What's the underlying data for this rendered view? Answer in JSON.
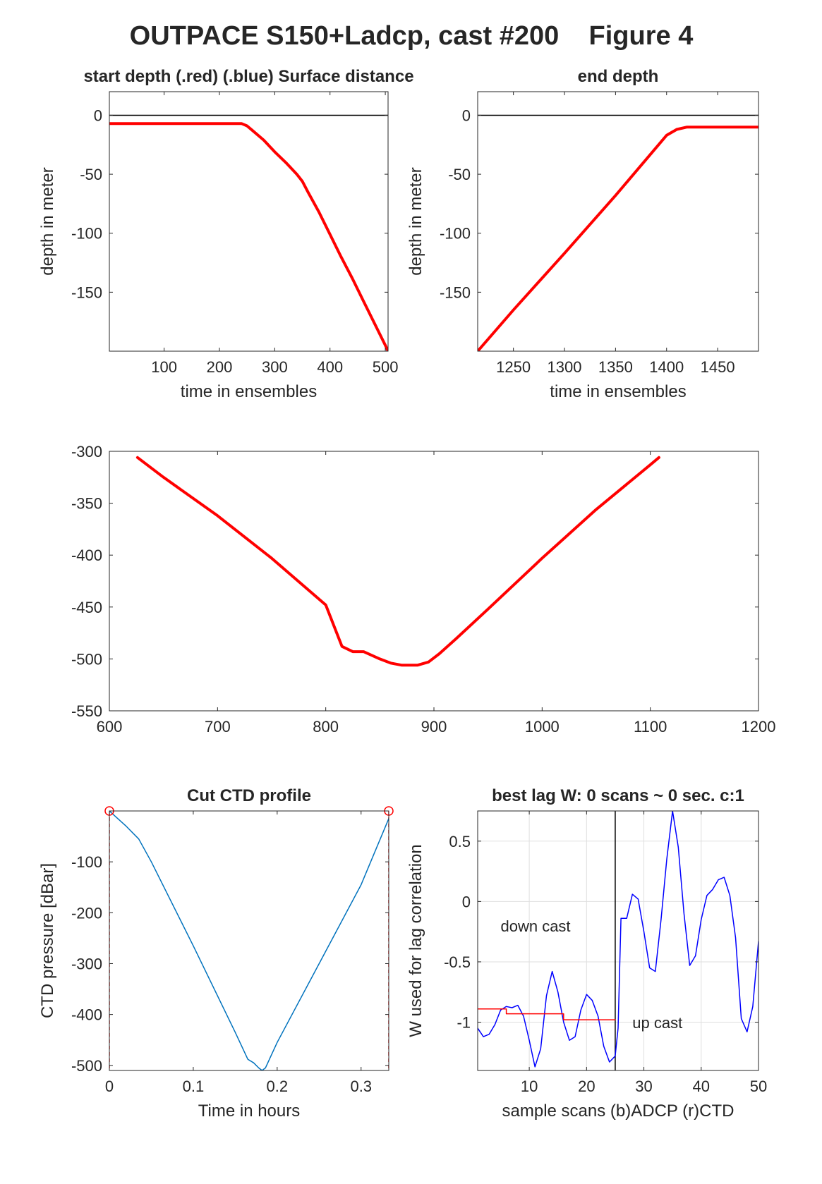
{
  "figure": {
    "title": "OUTPACE S150+Ladcp, cast #200    Figure 4"
  },
  "chart_data": [
    {
      "id": "p1",
      "type": "line",
      "title": "start depth (.red) (.blue) Surface distance",
      "xlabel": "time in ensembles",
      "ylabel": "depth in meter",
      "xlim": [
        1,
        505
      ],
      "ylim": [
        -200,
        20
      ],
      "xticks": [
        100,
        200,
        300,
        400,
        500
      ],
      "yticks": [
        0,
        -50,
        -100,
        -150
      ],
      "grid": false,
      "hlines": [
        {
          "y": 0,
          "color": "#000000"
        }
      ],
      "series": [
        {
          "color": "#ff0000",
          "width": 4,
          "x": [
            1,
            100,
            200,
            240,
            250,
            260,
            280,
            300,
            320,
            340,
            350,
            360,
            380,
            400,
            420,
            440,
            460,
            480,
            500,
            505
          ],
          "y": [
            -7,
            -7,
            -7,
            -7,
            -9,
            -13,
            -21,
            -31,
            -40,
            -50,
            -56,
            -65,
            -82,
            -101,
            -120,
            -138,
            -157,
            -176,
            -195,
            -200
          ]
        }
      ]
    },
    {
      "id": "p2",
      "type": "line",
      "title": "end depth",
      "xlabel": "time in ensembles",
      "ylabel": "depth in meter",
      "xlim": [
        1215,
        1490
      ],
      "ylim": [
        -200,
        20
      ],
      "xticks": [
        1250,
        1300,
        1350,
        1400,
        1450
      ],
      "yticks": [
        0,
        -50,
        -100,
        -150
      ],
      "grid": false,
      "hlines": [
        {
          "y": 0,
          "color": "#000000"
        }
      ],
      "series": [
        {
          "color": "#ff0000",
          "width": 4,
          "x": [
            1215,
            1250,
            1300,
            1350,
            1400,
            1410,
            1420,
            1450,
            1490
          ],
          "y": [
            -200,
            -165,
            -117,
            -68,
            -17,
            -12,
            -10,
            -10,
            -10
          ]
        }
      ]
    },
    {
      "id": "p3",
      "type": "line",
      "title": "",
      "xlabel": "",
      "ylabel": "",
      "xlim": [
        600,
        1200
      ],
      "ylim": [
        -550,
        -300
      ],
      "xticks": [
        600,
        700,
        800,
        900,
        1000,
        1100,
        1200
      ],
      "yticks": [
        -300,
        -350,
        -400,
        -450,
        -500,
        -550
      ],
      "grid": false,
      "series": [
        {
          "color": "#ff0000",
          "width": 4,
          "x": [
            626,
            650,
            700,
            750,
            800,
            815,
            825,
            835,
            850,
            860,
            870,
            885,
            895,
            905,
            920,
            950,
            1000,
            1050,
            1100,
            1108
          ],
          "y": [
            -306,
            -325,
            -362,
            -403,
            -448,
            -488,
            -493,
            -493,
            -500,
            -504,
            -506,
            -506,
            -503,
            -495,
            -481,
            -452,
            -403,
            -356,
            -313,
            -306
          ]
        }
      ]
    },
    {
      "id": "p4",
      "type": "line",
      "title": "Cut CTD profile",
      "xlabel": "Time in hours",
      "ylabel": "CTD pressure [dBar]",
      "xlim": [
        0,
        0.333
      ],
      "ylim": [
        -510,
        0
      ],
      "xticks": [
        0,
        0.1,
        0.2,
        0.3
      ],
      "yticks": [
        -100,
        -200,
        -300,
        -400,
        -500
      ],
      "grid": false,
      "vlines": [
        {
          "x": 0,
          "color": "#ff0000",
          "dashed": true
        },
        {
          "x": 0.333,
          "color": "#ff0000",
          "dashed": true
        }
      ],
      "markers": [
        {
          "x": 0,
          "y": 0,
          "color": "#ff0000"
        },
        {
          "x": 0.333,
          "y": 0,
          "color": "#ff0000"
        }
      ],
      "series": [
        {
          "color": "#0072bd",
          "width": 1.5,
          "x": [
            0,
            0.01,
            0.02,
            0.035,
            0.05,
            0.1,
            0.15,
            0.165,
            0.172,
            0.178,
            0.182,
            0.186,
            0.2,
            0.25,
            0.3,
            0.333
          ],
          "y": [
            0,
            -15,
            -30,
            -55,
            -100,
            -265,
            -435,
            -488,
            -495,
            -505,
            -510,
            -505,
            -455,
            -300,
            -145,
            -15
          ]
        }
      ]
    },
    {
      "id": "p5",
      "type": "line",
      "title": "best lag W: 0 scans ~ 0 sec.  c:1",
      "xlabel": "sample scans (b)ADCP (r)CTD",
      "ylabel": "W used for lag correlation",
      "xlim": [
        1,
        50
      ],
      "ylim": [
        -1.4,
        0.75
      ],
      "xticks": [
        10,
        20,
        30,
        40,
        50
      ],
      "yticks": [
        0.5,
        0,
        -0.5,
        -1
      ],
      "grid": true,
      "vlines": [
        {
          "x": 25,
          "color": "#000000"
        }
      ],
      "annotations": [
        {
          "text": "down cast",
          "x": 5,
          "y": -0.25
        },
        {
          "text": "up cast",
          "x": 28,
          "y": -1.05
        }
      ],
      "series": [
        {
          "color": "#0000ff",
          "width": 1.5,
          "x": [
            1,
            2,
            3,
            4,
            5,
            6,
            7,
            8,
            9,
            10,
            11,
            12,
            13,
            14,
            15,
            16,
            17,
            18,
            19,
            20,
            21,
            22,
            23,
            24,
            25,
            25.5,
            26,
            27,
            28,
            29,
            30,
            31,
            32,
            33,
            34,
            35,
            36,
            37,
            38,
            39,
            40,
            41,
            42,
            43,
            44,
            45,
            46,
            47,
            48,
            49,
            50
          ],
          "y": [
            -1.05,
            -1.12,
            -1.1,
            -1.02,
            -0.9,
            -0.87,
            -0.88,
            -0.86,
            -0.95,
            -1.15,
            -1.37,
            -1.22,
            -0.78,
            -0.58,
            -0.75,
            -1.0,
            -1.15,
            -1.12,
            -0.9,
            -0.77,
            -0.82,
            -0.95,
            -1.2,
            -1.33,
            -1.28,
            -1.05,
            -0.14,
            -0.14,
            0.06,
            0.02,
            -0.25,
            -0.55,
            -0.58,
            -0.15,
            0.35,
            0.75,
            0.45,
            -0.1,
            -0.53,
            -0.45,
            -0.15,
            0.05,
            0.1,
            0.18,
            0.2,
            0.05,
            -0.3,
            -0.97,
            -1.08,
            -0.87,
            -0.33
          ]
        },
        {
          "color": "#ff0000",
          "width": 1.5,
          "x": [
            1,
            6,
            6,
            16,
            16,
            25
          ],
          "y": [
            -0.89,
            -0.89,
            -0.93,
            -0.93,
            -0.98,
            -0.98
          ]
        }
      ]
    }
  ]
}
